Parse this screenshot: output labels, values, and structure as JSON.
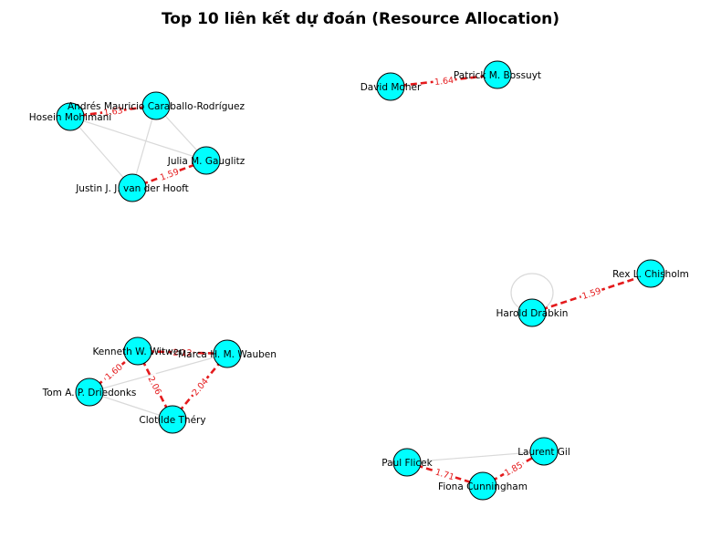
{
  "title": "Top 10 liên kết dự đoán (Resource Allocation)",
  "colors": {
    "node_fill": "#00ffff",
    "node_stroke": "#000000",
    "existing_edge": "#d9d9d9",
    "predicted_edge": "#e41a1c",
    "label_text": "#000000"
  },
  "nodes": [
    {
      "id": "hosein",
      "label": "Hosein Mohimani"
    },
    {
      "id": "andres",
      "label": "Andrés Mauricio Caraballo-Rodríguez"
    },
    {
      "id": "julia",
      "label": "Julia M. Gauglitz"
    },
    {
      "id": "justin",
      "label": "Justin J. J. van der Hooft"
    },
    {
      "id": "david",
      "label": "David Moher"
    },
    {
      "id": "patrick",
      "label": "Patrick M. Bossuyt"
    },
    {
      "id": "harold",
      "label": "Harold Drabkin"
    },
    {
      "id": "rex",
      "label": "Rex L. Chisholm"
    },
    {
      "id": "kenneth",
      "label": "Kenneth W. Witwer"
    },
    {
      "id": "marca",
      "label": "Marca H. M. Wauben"
    },
    {
      "id": "tom",
      "label": "Tom A. P. Driedonks"
    },
    {
      "id": "clotilde",
      "label": "Clotilde Théry"
    },
    {
      "id": "paul",
      "label": "Paul Flicek"
    },
    {
      "id": "laurent",
      "label": "Laurent Gil"
    },
    {
      "id": "fiona",
      "label": "Fiona Cunningham"
    }
  ],
  "existing_edges": [
    {
      "source": "hosein",
      "target": "julia"
    },
    {
      "source": "hosein",
      "target": "justin"
    },
    {
      "source": "andres",
      "target": "justin"
    },
    {
      "source": "andres",
      "target": "julia"
    },
    {
      "source": "harold",
      "target": "harold"
    },
    {
      "source": "tom",
      "target": "marca"
    },
    {
      "source": "tom",
      "target": "clotilde"
    },
    {
      "source": "kenneth",
      "target": "marca"
    },
    {
      "source": "paul",
      "target": "laurent"
    }
  ],
  "predicted_links": [
    {
      "source": "hosein",
      "target": "andres",
      "score": "1.63"
    },
    {
      "source": "justin",
      "target": "julia",
      "score": "1.59"
    },
    {
      "source": "david",
      "target": "patrick",
      "score": "1.64"
    },
    {
      "source": "harold",
      "target": "rex",
      "score": "1.59"
    },
    {
      "source": "tom",
      "target": "kenneth",
      "score": "1.60"
    },
    {
      "source": "kenneth",
      "target": "clotilde",
      "score": "2.06"
    },
    {
      "source": "clotilde",
      "target": "marca",
      "score": "2.04"
    },
    {
      "source": "kenneth",
      "target": "marca",
      "score": "2.12"
    },
    {
      "source": "paul",
      "target": "fiona",
      "score": "1.71"
    },
    {
      "source": "fiona",
      "target": "laurent",
      "score": "1.85"
    }
  ]
}
